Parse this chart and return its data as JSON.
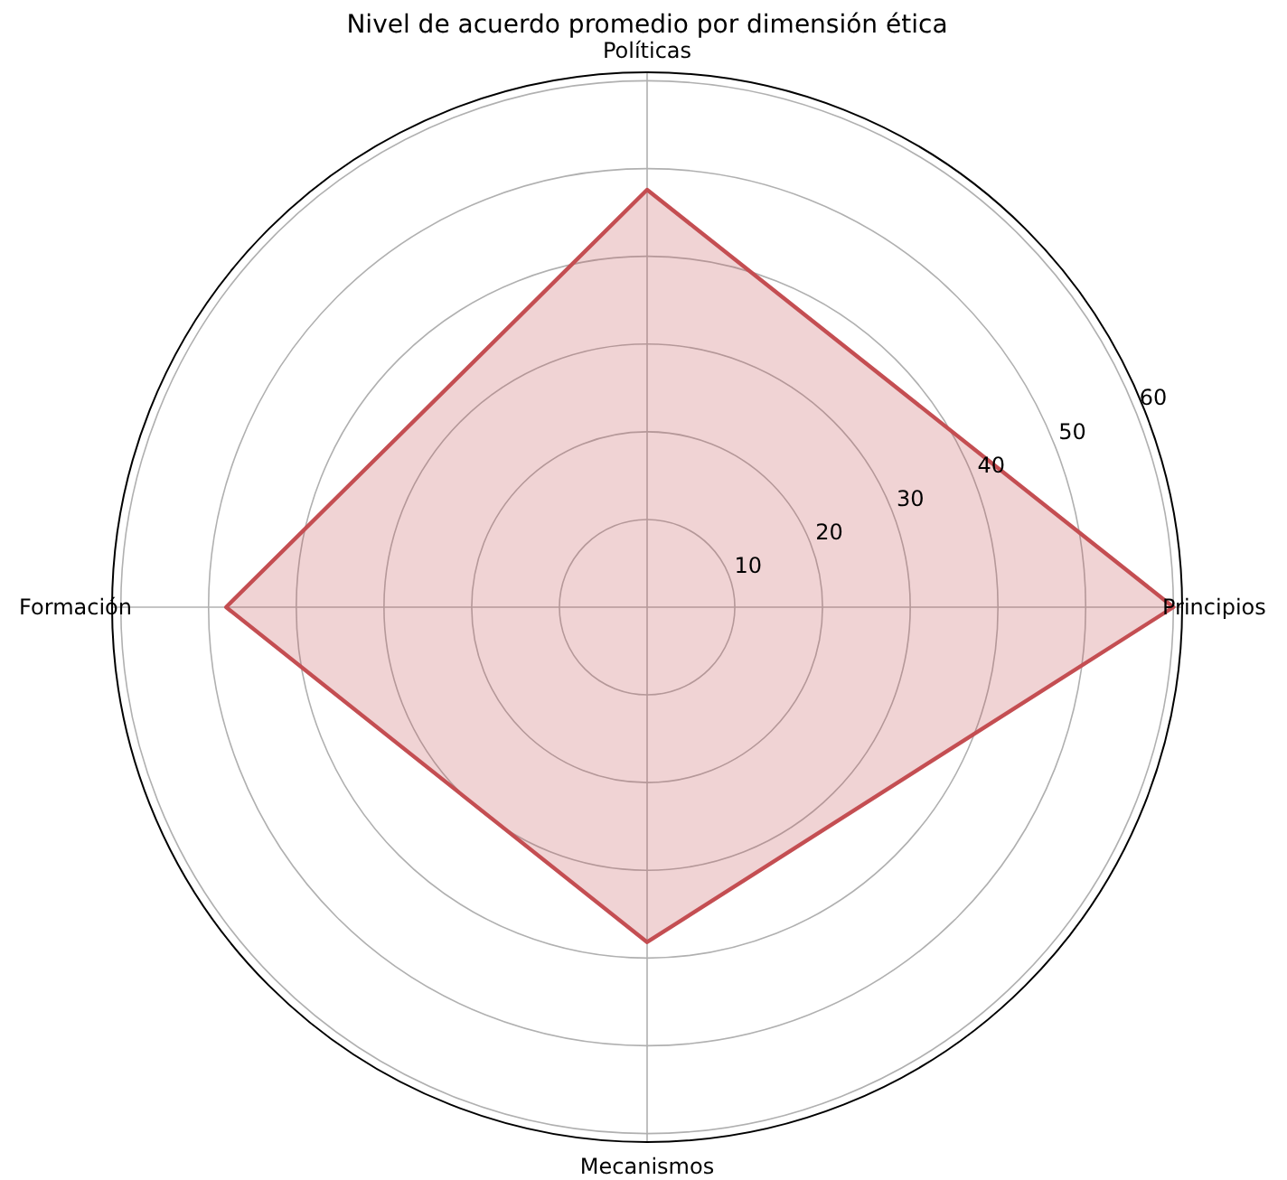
{
  "chart_data": {
    "type": "radar",
    "title": "Nivel de acuerdo promedio por dimensión ética",
    "categories": [
      "Políticas",
      "Principios",
      "Mecanismos",
      "Formación"
    ],
    "series": [
      {
        "color": "#c44e52",
        "values": [
          47.6,
          60,
          38.2,
          48
        ]
      }
    ],
    "ylim": [
      0,
      61
    ],
    "yticks": [
      10,
      20,
      30,
      40,
      50,
      60
    ],
    "grid": true,
    "marker": "none",
    "line_style": "solid"
  }
}
